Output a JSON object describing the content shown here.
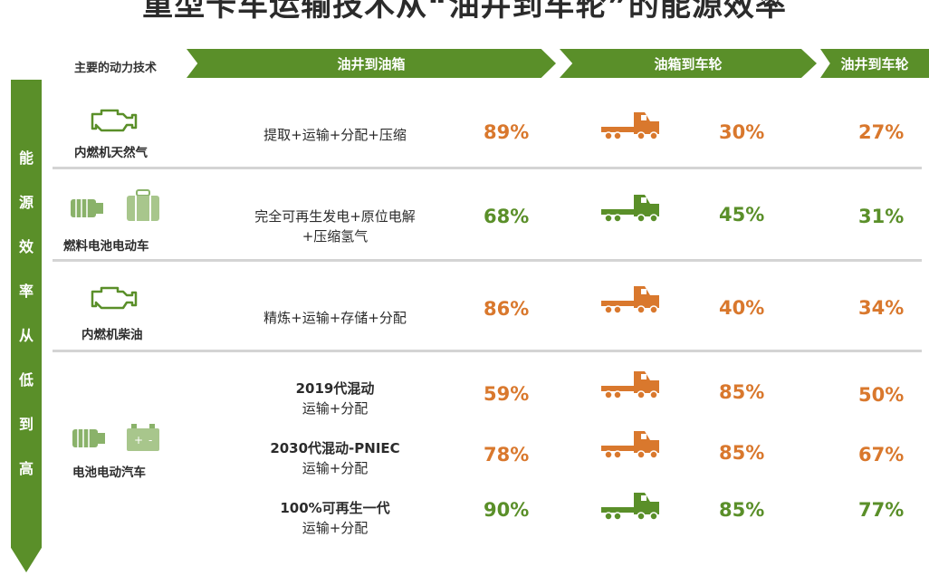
{
  "title": "重型卡车运输技术从“油井到车轮”的能源效率",
  "header": {
    "label": "主要的动力技术",
    "stage1": "油井到油箱",
    "stage2": "油箱到车轮",
    "stage3": "油井到车轮"
  },
  "side_label": [
    "能",
    "源",
    "效",
    "率",
    "从",
    "低",
    "到",
    "高"
  ],
  "colors": {
    "green": "#5a8f29",
    "orange": "#d9782d"
  },
  "rows": [
    {
      "tech": "内燃机天然气",
      "icon": "engine-icon",
      "process": "提取+运输+分配+压缩",
      "wtt": "89%",
      "ttw": "30%",
      "wtw": "27%",
      "truck": "orange"
    },
    {
      "tech": "燃料电池电动车",
      "icon": "fuel-cell-battery-icon",
      "process": "完全可再生发电+原位电解",
      "process2": "+压缩氢气",
      "wtt": "68%",
      "ttw": "45%",
      "wtw": "31%",
      "truck": "green"
    },
    {
      "tech": "内燃机柴油",
      "icon": "engine-icon",
      "process": "精炼+运输+存储+分配",
      "wtt": "86%",
      "ttw": "40%",
      "wtw": "34%",
      "truck": "orange"
    }
  ],
  "bev": {
    "tech": "电池电动汽车",
    "sub": [
      {
        "name": "2019代混动",
        "process": "运输+分配",
        "wtt": "59%",
        "ttw": "85%",
        "wtw": "50%",
        "truck": "orange"
      },
      {
        "name": "2030代混动-PNIEC",
        "process": "运输+分配",
        "wtt": "78%",
        "ttw": "85%",
        "wtw": "67%",
        "truck": "orange"
      },
      {
        "name": "100%可再生一代",
        "process": "运输+分配",
        "wtt": "90%",
        "ttw": "85%",
        "wtw": "77%",
        "truck": "green"
      }
    ]
  }
}
